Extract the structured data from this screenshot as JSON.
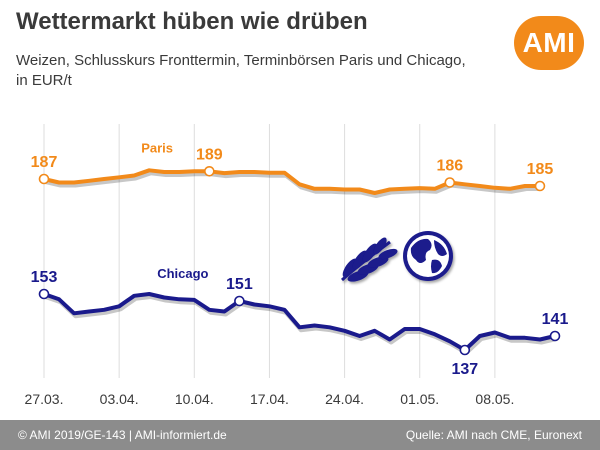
{
  "header": {
    "title": "Wettermarkt hüben wie drüben",
    "subtitle_line1": "Weizen, Schlusskurs Fronttermin, Terminbörsen Paris und Chicago,",
    "subtitle_line2": "in EUR/t",
    "logo_text": "AMI"
  },
  "footer": {
    "left": "© AMI 2019/GE-143 | AMI-informiert.de",
    "right": "Quelle: AMI nach CME, Euronext"
  },
  "colors": {
    "paris": "#F28A1A",
    "chicago": "#1A1A8C",
    "footer_bg": "#8C8C8C",
    "grid": "#DDDDDD",
    "logo_bg": "#F28A1A"
  },
  "chart_data": {
    "type": "line",
    "x_tick_labels": [
      "27.03.",
      "03.04.",
      "10.04.",
      "17.04.",
      "24.04.",
      "01.05.",
      "08.05."
    ],
    "grid": "vertical",
    "series": [
      {
        "name": "Paris",
        "color": "#F28A1A",
        "values": [
          187,
          186,
          186,
          186.5,
          187,
          187.5,
          188,
          189.5,
          189,
          189,
          189.2,
          189.2,
          188.7,
          189,
          189,
          188.8,
          188.8,
          185.5,
          184.2,
          184.2,
          184,
          184,
          183,
          184,
          184.2,
          184.4,
          184.2,
          186,
          185.5,
          185,
          184.5,
          184.2,
          185,
          185
        ],
        "labels": [
          {
            "index": 0,
            "text": "187"
          },
          {
            "index": 11,
            "text": "189"
          },
          {
            "index": 27,
            "text": "186"
          },
          {
            "index": 33,
            "text": "185"
          }
        ]
      },
      {
        "name": "Chicago",
        "color": "#1A1A8C",
        "values": [
          153,
          151.5,
          147.5,
          148,
          148.5,
          149.5,
          152.5,
          153,
          152,
          151.5,
          151.3,
          148.5,
          148,
          151,
          150,
          149.5,
          148.5,
          143.5,
          144,
          143.5,
          142.5,
          141,
          142.5,
          140,
          143,
          143,
          141.5,
          139.5,
          137,
          141,
          142,
          140.5,
          140.5,
          140,
          141
        ],
        "labels": [
          {
            "index": 0,
            "text": "153"
          },
          {
            "index": 13,
            "text": "151"
          },
          {
            "index": 28,
            "text": "137"
          },
          {
            "index": 34,
            "text": "141"
          }
        ]
      }
    ]
  }
}
